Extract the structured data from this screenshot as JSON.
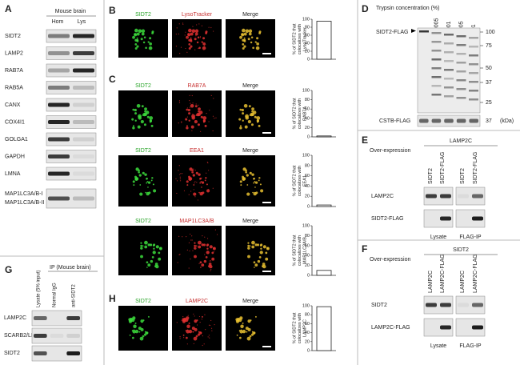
{
  "panels": {
    "A": {
      "label": "A",
      "header": "Mouse brain",
      "columns": [
        "Hom",
        "Lys"
      ],
      "rows": [
        "SIDT2",
        "LAMP2",
        "RAB7A",
        "RAB5A",
        "CANX",
        "COX4I1",
        "GOLGA1",
        "GAPDH",
        "LMNA",
        "MAP1LC3A/B-I",
        "MAP1LC3A/B-II"
      ]
    },
    "B": {
      "label": "B",
      "images": [
        "SIDT2",
        "LysoTracker",
        "Merge"
      ],
      "chart": {
        "type": "bar",
        "ylabel": [
          "% of SIDT2 that",
          "colocalizes with",
          "LysoTracker"
        ],
        "ylim": [
          0,
          100
        ],
        "yticks": [
          0,
          20,
          40,
          60,
          80,
          100
        ],
        "values": [
          95
        ]
      }
    },
    "C": {
      "label": "C",
      "rows": [
        {
          "images": [
            "SIDT2",
            "RAB7A",
            "Merge"
          ],
          "chart": {
            "type": "bar",
            "ylabel": [
              "% of SIDT2 that",
              "colocalizes with",
              "RAB7A"
            ],
            "ylim": [
              0,
              100
            ],
            "yticks": [
              0,
              20,
              40,
              60,
              80,
              100
            ],
            "values": [
              2
            ]
          }
        },
        {
          "images": [
            "SIDT2",
            "EEA1",
            "Merge"
          ],
          "chart": {
            "type": "bar",
            "ylabel": [
              "% of SIDT2 that",
              "colocalizes with",
              "EEA1"
            ],
            "ylim": [
              0,
              100
            ],
            "yticks": [
              0,
              20,
              40,
              60,
              80,
              100
            ],
            "values": [
              3
            ]
          }
        },
        {
          "images": [
            "SIDT2",
            "MAP1LC3A/B",
            "Merge"
          ],
          "chart": {
            "type": "bar",
            "ylabel": [
              "% of SIDT2 that",
              "colocalizes with",
              "MAP1LC3A/B"
            ],
            "ylim": [
              0,
              100
            ],
            "yticks": [
              0,
              20,
              40,
              60,
              80,
              100
            ],
            "values": [
              10
            ]
          }
        }
      ]
    },
    "H": {
      "label": "H",
      "images": [
        "SIDT2",
        "LAMP2C",
        "Merge"
      ],
      "chart": {
        "type": "bar",
        "ylabel": [
          "% of SIDT2 that",
          "colocalizes with",
          "LAMP2C"
        ],
        "ylim": [
          0,
          100
        ],
        "yticks": [
          0,
          20,
          40,
          60,
          80,
          100
        ],
        "values": [
          98
        ]
      }
    },
    "D": {
      "label": "D",
      "title": "Trypsin concentration (%)",
      "columns": [
        "0",
        "0.0005",
        "0.001",
        "0.005",
        "0.01"
      ],
      "bands": [
        "SIDT2-FLAG",
        "CSTB-FLAG"
      ],
      "markers": [
        "100",
        "75",
        "50",
        "37",
        "25"
      ],
      "marker2": "37",
      "unit": "(kDa)"
    },
    "E": {
      "label": "E",
      "overexpression": "Over-expression",
      "construct": "LAMP2C",
      "columns": [
        "SIDT2",
        "SIDT2-FLAG",
        "SIDT2",
        "SIDT2-FLAG"
      ],
      "rows": [
        "LAMP2C",
        "SIDT2-FLAG"
      ],
      "groups": [
        "Lysate",
        "FLAG-IP"
      ]
    },
    "F": {
      "label": "F",
      "overexpression": "Over-expression",
      "construct": "SIDT2",
      "columns": [
        "LAMP2C",
        "LAMP2C-FLAG",
        "LAMP2C",
        "LAMP2C-FLAG"
      ],
      "rows": [
        "SIDT2",
        "LAMP2C-FLAG"
      ],
      "groups": [
        "Lysate",
        "FLAG-IP"
      ]
    },
    "G": {
      "label": "G",
      "ip": "IP (Mouse brain)",
      "columns": [
        "Lysate (5% input)",
        "Normal IgG",
        "anti-SIDT2"
      ],
      "rows": [
        "LAMP2C",
        "SCARB2/LIMP2",
        "SIDT2"
      ]
    }
  }
}
